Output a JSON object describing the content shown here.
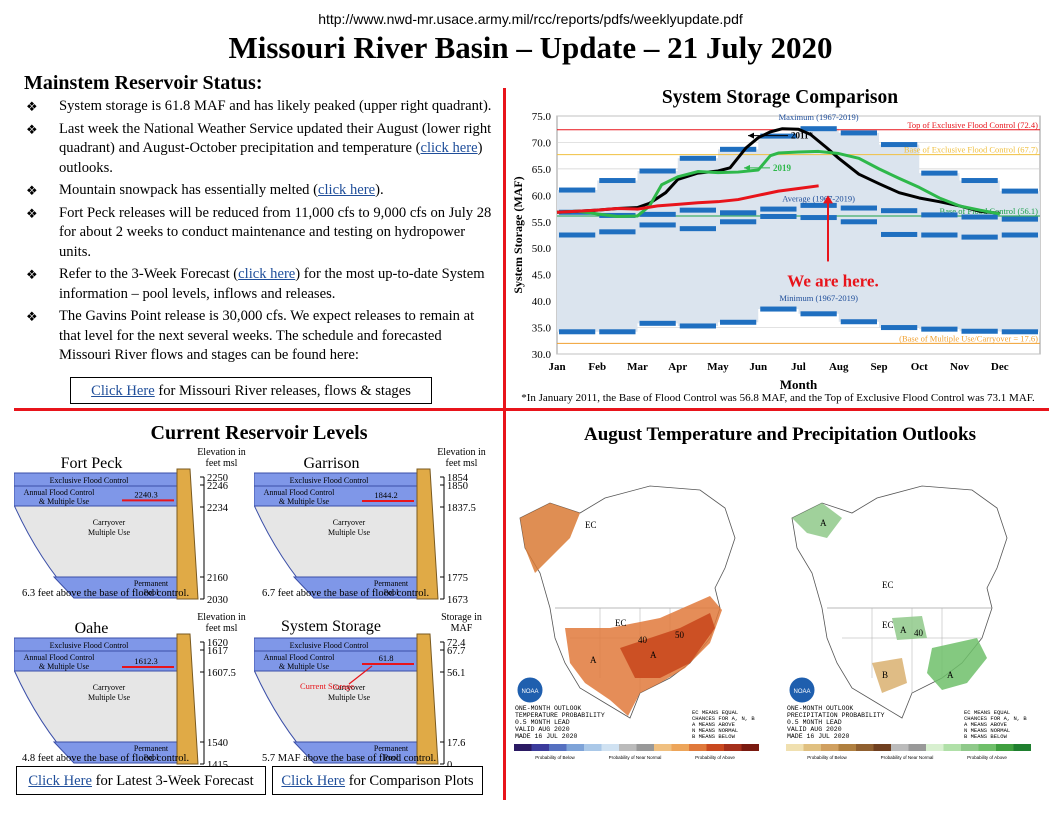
{
  "header": {
    "url": "http://www.nwd-mr.usace.army.mil/rcc/reports/pdfs/weeklyupdate.pdf",
    "title": "Missouri River Basin – Update – 21 July 2020"
  },
  "mainstem": {
    "heading": "Mainstem Reservoir Status:",
    "bullet_glyph": "❖",
    "bullets": [
      {
        "before": "System storage is 61.8 MAF and has likely peaked (upper right quadrant).",
        "link": "",
        "after": ""
      },
      {
        "before": "Last week the National Weather Service updated their August (lower right quadrant) and August-October precipitation and temperature (",
        "link": "click here",
        "after": ") outlooks."
      },
      {
        "before": "Mountain snowpack has essentially melted (",
        "link": "click here",
        "after": ")."
      },
      {
        "before": "Fort Peck releases will be reduced from 11,000 cfs to 9,000 cfs on July 28 for about 2 weeks to conduct maintenance and testing on hydropower units.",
        "link": "",
        "after": ""
      },
      {
        "before": "Refer to the 3-Week Forecast (",
        "link": "click here",
        "after": ") for the most up-to-date System information – pool levels, inflows and releases."
      },
      {
        "before": "The Gavins Point release is 30,000 cfs.  We expect releases to remain at that level for the next several weeks.  The schedule and forecasted Missouri River flows and stages can be found here:",
        "link": "",
        "after": ""
      }
    ],
    "release_link": {
      "link": "Click Here",
      "after": " for Missouri River releases, flows & stages"
    }
  },
  "chart_data": {
    "type": "line",
    "title": "System Storage Comparison",
    "xlabel": "Month",
    "ylabel": "System Storage (MAF)",
    "ylim": [
      30,
      75
    ],
    "yticks": [
      "30.0",
      "35.0",
      "40.0",
      "45.0",
      "50.0",
      "55.0",
      "60.0",
      "65.0",
      "70.0",
      "75.0"
    ],
    "categories": [
      "Jan",
      "Feb",
      "Mar",
      "Apr",
      "May",
      "Jun",
      "Jul",
      "Aug",
      "Sep",
      "Oct",
      "Nov",
      "Dec"
    ],
    "reference_lines": [
      {
        "label": "Top of Exclusive Flood Control (72.4)",
        "value": 72.4,
        "color": "#e8141b"
      },
      {
        "label": "Base of Exclusive Flood Control (67.7)",
        "value": 67.7,
        "color": "#f0c040"
      },
      {
        "label": "Base of Flood Control (56.1)",
        "value": 56.1,
        "color": "#1aa04a"
      },
      {
        "label": "(Base of Multiple Use/Carryover = 17.6)",
        "value": 32.0,
        "color": "#f0a030"
      }
    ],
    "band_labels": {
      "maximum": "Maximum (1967-2019)",
      "average": "Average (1967-2019)",
      "minimum": "Minimum (1967-2019)"
    },
    "maximum": [
      61.0,
      62.8,
      64.6,
      67.0,
      68.7,
      71.2,
      72.6,
      71.8,
      69.6,
      64.2,
      62.8,
      60.8
    ],
    "average": [
      56.8,
      56.2,
      56.4,
      57.2,
      56.7,
      57.4,
      58.1,
      57.6,
      57.1,
      56.3,
      55.9,
      55.5
    ],
    "minimum": [
      34.2,
      34.2,
      35.8,
      35.3,
      36.0,
      38.5,
      37.6,
      36.1,
      35.0,
      34.7,
      34.3,
      34.2
    ],
    "max_low": [
      52.5,
      53.1,
      54.4,
      53.7,
      55.0,
      56.0,
      55.8,
      55.0,
      52.6,
      52.5,
      52.1,
      52.5
    ],
    "series": [
      {
        "name": "2011*",
        "color": "#000000",
        "x": [
          0,
          0.5,
          1,
          1.5,
          2,
          2.3,
          2.7,
          3,
          3.5,
          4,
          4.3,
          4.7,
          5,
          5.3,
          5.6,
          6,
          6.3,
          6.7,
          7,
          7.5,
          8,
          8.5,
          9,
          9.5,
          10,
          10.5,
          11
        ],
        "y": [
          56.8,
          57.0,
          57.2,
          57.5,
          57.7,
          58.5,
          60.5,
          63.0,
          64.2,
          64.6,
          65.2,
          69.0,
          70.9,
          72.0,
          72.6,
          72.5,
          71.5,
          69.0,
          67.0,
          64.0,
          62.2,
          60.5,
          59.5,
          58.8,
          58.0,
          57.0,
          56.6
        ]
      },
      {
        "name": "2019",
        "color": "#2eb84a",
        "x": [
          0,
          0.5,
          1,
          1.5,
          2,
          2.3,
          2.6,
          3,
          3.5,
          4,
          4.5,
          5,
          5.3,
          5.5,
          6,
          6.5,
          7,
          7.5,
          8,
          8.5,
          9,
          9.5,
          10,
          10.5,
          11
        ],
        "y": [
          56.8,
          57.0,
          56.5,
          56.0,
          56.1,
          58.0,
          62.0,
          63.5,
          64.5,
          64.3,
          64.4,
          64.8,
          67.5,
          68.0,
          68.2,
          68.3,
          67.9,
          67.0,
          65.0,
          63.2,
          61.5,
          59.5,
          58.0,
          57.2,
          56.5
        ]
      },
      {
        "name": "",
        "color": "#e8141b",
        "x": [
          0,
          0.5,
          1,
          1.5,
          2,
          2.5,
          3,
          3.5,
          4,
          4.5,
          5,
          5.5,
          6,
          6.5
        ],
        "y": [
          56.8,
          57.0,
          57.2,
          57.5,
          57.4,
          58.0,
          58.3,
          58.6,
          58.8,
          59.2,
          60.0,
          60.8,
          61.3,
          61.8
        ]
      }
    ],
    "annotation": "We are here.",
    "footnote": "*In January 2011, the Base of Flood Control was 56.8 MAF, and the Top of Exclusive Flood Control was 73.1 MAF."
  },
  "levels": {
    "heading": "Current Reservoir Levels",
    "zone_labels": {
      "exclusive": "Exclusive Flood Control",
      "annual1": "Annual Flood Control",
      "annual2": "& Multiple Use",
      "carry1": "Carryover",
      "carry2": "Multiple Use",
      "perm1": "Permanent",
      "perm2": "Pool"
    },
    "reservoirs": [
      {
        "name": "Fort Peck",
        "current": "2240.3",
        "head1": "Elevation in",
        "head2": "feet msl",
        "ticks": [
          "2250",
          "2246",
          "2234",
          "2160",
          "2030"
        ],
        "note": "6.3 feet above the base of flood control.",
        "fill": 0.42
      },
      {
        "name": "Garrison",
        "current": "1844.2",
        "head1": "Elevation in",
        "head2": "feet msl",
        "ticks": [
          "1854",
          "1850",
          "1837.5",
          "1775",
          "1673"
        ],
        "note": "6.7 feet above the base of flood control.",
        "fill": 0.45
      },
      {
        "name": "Oahe",
        "current": "1612.3",
        "head1": "Elevation in",
        "head2": "feet msl",
        "ticks": [
          "1620",
          "1617",
          "1607.5",
          "1540",
          "1415"
        ],
        "note": "4.8 feet above the base of flood control.",
        "fill": 0.5
      },
      {
        "name": "System Storage",
        "current": "61.8",
        "head1": "Storage in",
        "head2": "MAF",
        "ticks": [
          "72.4",
          "67.7",
          "56.1",
          "17.6",
          "0"
        ],
        "note": "5.7 MAF above the base of flood control.",
        "fill": 0.35,
        "pointer": "Current Storage"
      }
    ],
    "forecast_link": {
      "link": "Click Here",
      "after": " for Latest 3-Week Forecast"
    },
    "comparison_link": {
      "link": "Click Here",
      "after": " for Comparison Plots"
    }
  },
  "outlooks": {
    "heading": "August Temperature and Precipitation Outlooks",
    "temp": {
      "caption": [
        "ONE-MONTH OUTLOOK",
        "TEMPERATURE PROBABILITY",
        "0.5 MONTH LEAD",
        "VALID AUG 2020",
        "MADE 16 JUL 2020"
      ],
      "legend": [
        "EC MEANS EQUAL",
        "CHANCES FOR A, N, B",
        "A MEANS ABOVE",
        "N MEANS NORMAL",
        "B MEANS BELOW"
      ],
      "labels": [
        "EC",
        "EC",
        "A",
        "A",
        "40",
        "50"
      ]
    },
    "precip": {
      "caption": [
        "ONE-MONTH OUTLOOK",
        "PRECIPITATION PROBABILITY",
        "0.5 MONTH LEAD",
        "VALID AUG 2020",
        "MADE 16 JUL 2020"
      ],
      "legend": [
        "EC MEANS EQUAL",
        "CHANCES FOR A, N, B",
        "A MEANS ABOVE",
        "N MEANS NORMAL",
        "B MEANS BELOW"
      ],
      "labels": [
        "EC",
        "A",
        "EC",
        "A",
        "B",
        "A",
        "40"
      ]
    },
    "legend_below": "Probability of Below",
    "legend_normal": "Probability of Near Normal",
    "legend_above": "Probability of Above",
    "noaa": "NOAA"
  }
}
